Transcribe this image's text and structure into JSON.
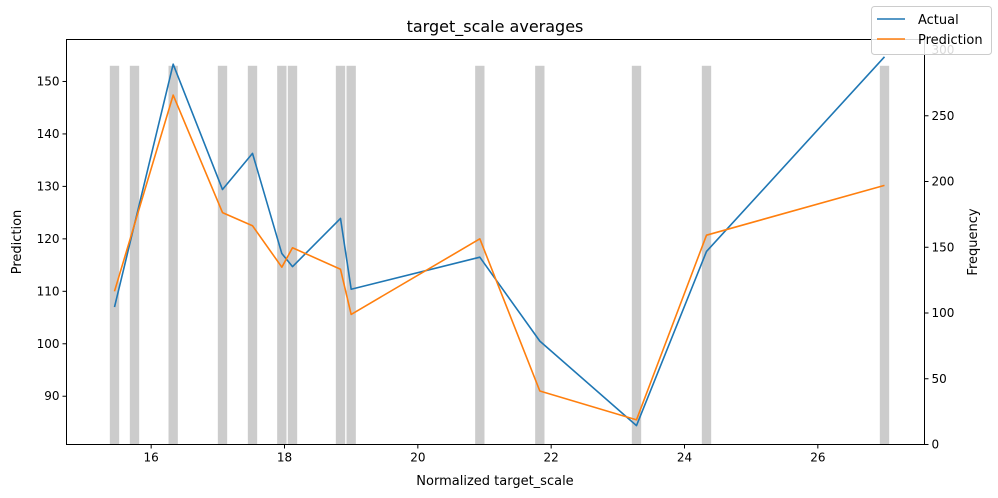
{
  "chart_data": {
    "type": "line",
    "title": "target_scale averages",
    "xlabel": "Normalized target_scale",
    "ylabel": "Prediction",
    "y2label": "Frequency",
    "xlim": [
      14.73,
      27.6
    ],
    "ylim": [
      80.8,
      158.0
    ],
    "y2lim": [
      0,
      308
    ],
    "x_ticks": [
      16,
      18,
      20,
      22,
      24,
      26
    ],
    "y_ticks": [
      90,
      100,
      110,
      120,
      130,
      140,
      150
    ],
    "y2_ticks": [
      0,
      50,
      100,
      150,
      200,
      250
    ],
    "y2_partial_tick_label": "300",
    "grid": false,
    "legend_position": "top-right",
    "colors": {
      "actual": "#1f77b4",
      "prediction": "#ff7f0e",
      "histogram": "#cccccc"
    },
    "histogram": {
      "name": "Frequency",
      "bar_width": 0.14,
      "bars": [
        {
          "x": 15.45,
          "count": 288
        },
        {
          "x": 15.75,
          "count": 288
        },
        {
          "x": 16.33,
          "count": 288
        },
        {
          "x": 17.07,
          "count": 288
        },
        {
          "x": 17.52,
          "count": 288
        },
        {
          "x": 17.96,
          "count": 288
        },
        {
          "x": 18.12,
          "count": 288
        },
        {
          "x": 18.84,
          "count": 288
        },
        {
          "x": 19.0,
          "count": 288
        },
        {
          "x": 20.93,
          "count": 288
        },
        {
          "x": 21.83,
          "count": 288
        },
        {
          "x": 23.28,
          "count": 288
        },
        {
          "x": 24.33,
          "count": 288
        },
        {
          "x": 27.0,
          "count": 288
        }
      ]
    },
    "series": [
      {
        "name": "Actual",
        "x": [
          15.45,
          16.33,
          17.07,
          17.52,
          17.96,
          18.12,
          18.84,
          19.0,
          20.93,
          21.83,
          23.28,
          24.33,
          27.0
        ],
        "values": [
          107.0,
          153.3,
          129.4,
          136.3,
          117.2,
          114.7,
          123.9,
          110.4,
          116.5,
          100.5,
          84.4,
          117.6,
          154.7
        ]
      },
      {
        "name": "Prediction",
        "x": [
          15.45,
          16.33,
          17.07,
          17.52,
          17.96,
          18.12,
          18.84,
          19.0,
          20.93,
          21.83,
          23.28,
          24.33,
          27.0
        ],
        "values": [
          110.0,
          147.4,
          125.0,
          122.5,
          114.6,
          118.3,
          114.2,
          105.6,
          120.0,
          91.0,
          85.5,
          120.7,
          130.2
        ]
      }
    ]
  }
}
